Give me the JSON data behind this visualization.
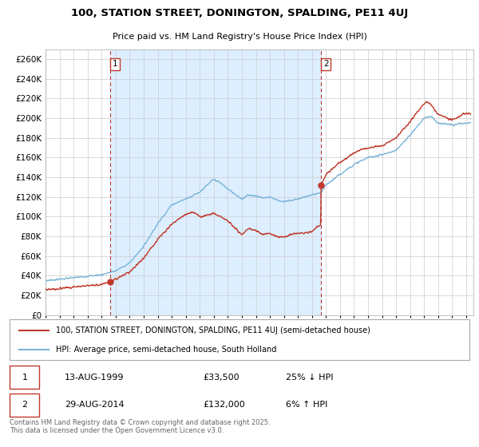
{
  "title": "100, STATION STREET, DONINGTON, SPALDING, PE11 4UJ",
  "subtitle": "Price paid vs. HM Land Registry's House Price Index (HPI)",
  "ylim": [
    0,
    270000
  ],
  "yticks": [
    0,
    20000,
    40000,
    60000,
    80000,
    100000,
    120000,
    140000,
    160000,
    180000,
    200000,
    220000,
    240000,
    260000
  ],
  "xlim_start": 1995.0,
  "xlim_end": 2025.5,
  "hpi_color": "#7ab4d8",
  "price_color": "#c0392b",
  "grid_color": "#cccccc",
  "bg_color": "#ffffff",
  "plot_bg_color": "#ffffff",
  "shade_color": "#ddeeff",
  "legend_line1": "100, STATION STREET, DONINGTON, SPALDING, PE11 4UJ (semi-detached house)",
  "legend_line2": "HPI: Average price, semi-detached house, South Holland",
  "transaction1_date": "13-AUG-1999",
  "transaction1_price": "£33,500",
  "transaction1_hpi": "25% ↓ HPI",
  "transaction2_date": "29-AUG-2014",
  "transaction2_price": "£132,000",
  "transaction2_hpi": "6% ↑ HPI",
  "footnote": "Contains HM Land Registry data © Crown copyright and database right 2025.\nThis data is licensed under the Open Government Licence v3.0.",
  "vline1_x": 1999.62,
  "vline2_x": 2014.65,
  "marker1_x": 1999.62,
  "marker1_y": 33500,
  "marker2_x": 2014.65,
  "marker2_y": 132000
}
